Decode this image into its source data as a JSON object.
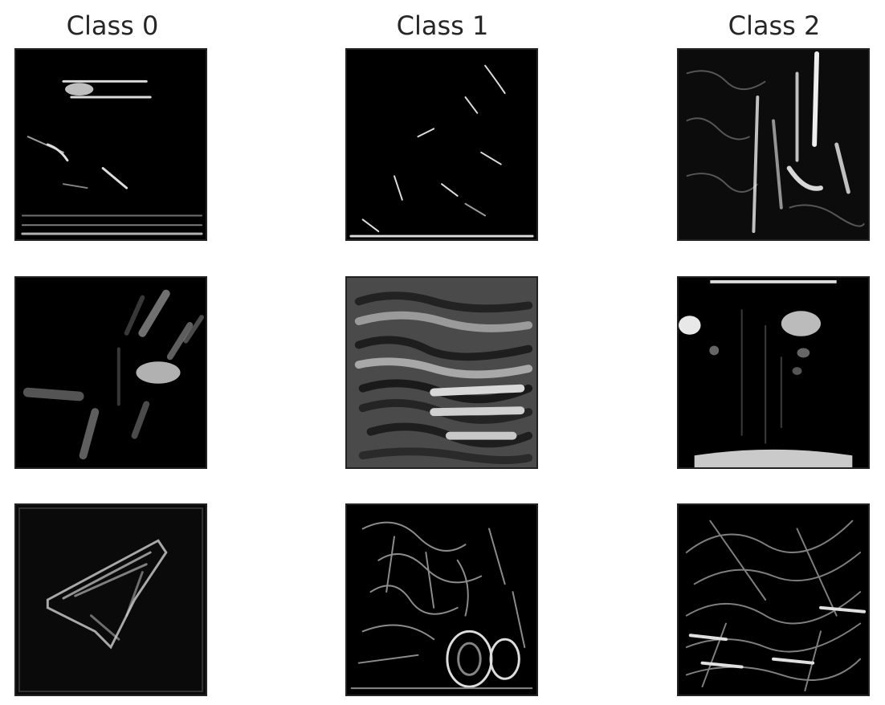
{
  "figure": {
    "columns": [
      {
        "title": "Class 0"
      },
      {
        "title": "Class 1"
      },
      {
        "title": "Class 2"
      }
    ],
    "panels": [
      {
        "row": 0,
        "col": 0,
        "description": "dark feature map with horizontal streaks near top and bottom edges"
      },
      {
        "row": 0,
        "col": 1,
        "description": "sparse bright edge fragments on black"
      },
      {
        "row": 0,
        "col": 2,
        "description": "textured map with vertical bright strokes"
      },
      {
        "row": 1,
        "col": 0,
        "description": "blurred bright limb-like blobs"
      },
      {
        "row": 1,
        "col": 1,
        "description": "gray map with horizontal stripe pattern"
      },
      {
        "row": 1,
        "col": 2,
        "description": "dark map with bright patches top and bottom"
      },
      {
        "row": 2,
        "col": 0,
        "description": "outlined shape on near-black background"
      },
      {
        "row": 2,
        "col": 1,
        "description": "dense edge texture with circular contours bottom right"
      },
      {
        "row": 2,
        "col": 2,
        "description": "dense wavy diagonal edge texture"
      }
    ],
    "colors": {
      "background": "#ffffff",
      "panel": "#000000",
      "title": "#262626"
    }
  }
}
